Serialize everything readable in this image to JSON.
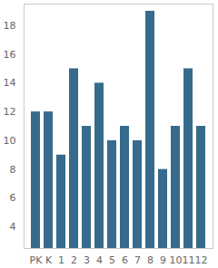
{
  "chart_data": {
    "type": "bar",
    "categories": [
      "PK",
      "K",
      "1",
      "2",
      "3",
      "4",
      "5",
      "6",
      "7",
      "8",
      "9",
      "10",
      "11",
      "12"
    ],
    "values": [
      12,
      12,
      9,
      15,
      11,
      14,
      10,
      11,
      10,
      19,
      8,
      11,
      15,
      11
    ],
    "color": "#366b8d",
    "ylim": [
      2.5,
      19.5
    ],
    "yticks": [
      4,
      6,
      8,
      10,
      12,
      14,
      16,
      18
    ],
    "grid": false
  }
}
